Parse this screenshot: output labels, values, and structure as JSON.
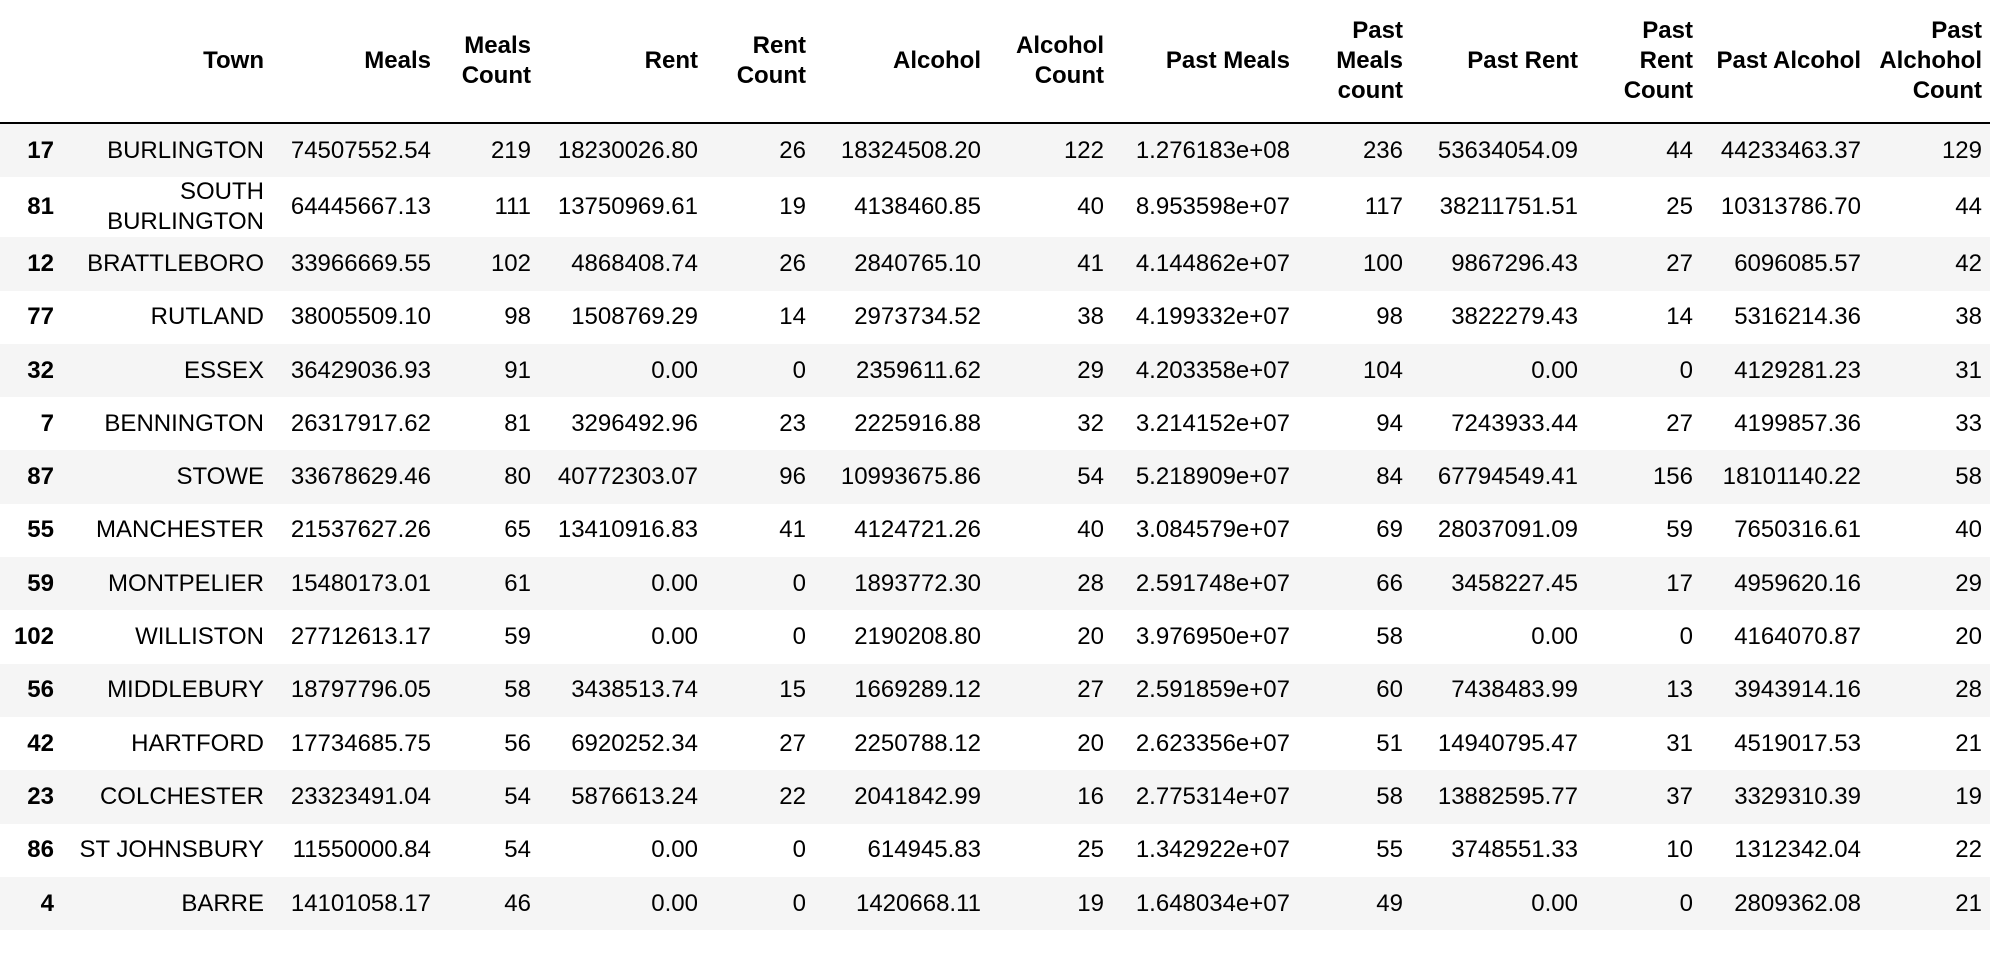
{
  "columns": [
    "Town",
    "Meals",
    "Meals Count",
    "Rent",
    "Rent Count",
    "Alcohol",
    "Alcohol Count",
    "Past Meals",
    "Past Meals count",
    "Past Rent",
    "Past Rent Count",
    "Past Alcohol",
    "Past Alchohol Count"
  ],
  "rows": [
    {
      "index": "17",
      "cells": [
        "BURLINGTON",
        "74507552.54",
        "219",
        "18230026.80",
        "26",
        "18324508.20",
        "122",
        "1.276183e+08",
        "236",
        "53634054.09",
        "44",
        "44233463.37",
        "129"
      ]
    },
    {
      "index": "81",
      "cells": [
        "SOUTH BURLINGTON",
        "64445667.13",
        "111",
        "13750969.61",
        "19",
        "4138460.85",
        "40",
        "8.953598e+07",
        "117",
        "38211751.51",
        "25",
        "10313786.70",
        "44"
      ]
    },
    {
      "index": "12",
      "cells": [
        "BRATTLEBORO",
        "33966669.55",
        "102",
        "4868408.74",
        "26",
        "2840765.10",
        "41",
        "4.144862e+07",
        "100",
        "9867296.43",
        "27",
        "6096085.57",
        "42"
      ]
    },
    {
      "index": "77",
      "cells": [
        "RUTLAND",
        "38005509.10",
        "98",
        "1508769.29",
        "14",
        "2973734.52",
        "38",
        "4.199332e+07",
        "98",
        "3822279.43",
        "14",
        "5316214.36",
        "38"
      ]
    },
    {
      "index": "32",
      "cells": [
        "ESSEX",
        "36429036.93",
        "91",
        "0.00",
        "0",
        "2359611.62",
        "29",
        "4.203358e+07",
        "104",
        "0.00",
        "0",
        "4129281.23",
        "31"
      ]
    },
    {
      "index": "7",
      "cells": [
        "BENNINGTON",
        "26317917.62",
        "81",
        "3296492.96",
        "23",
        "2225916.88",
        "32",
        "3.214152e+07",
        "94",
        "7243933.44",
        "27",
        "4199857.36",
        "33"
      ]
    },
    {
      "index": "87",
      "cells": [
        "STOWE",
        "33678629.46",
        "80",
        "40772303.07",
        "96",
        "10993675.86",
        "54",
        "5.218909e+07",
        "84",
        "67794549.41",
        "156",
        "18101140.22",
        "58"
      ]
    },
    {
      "index": "55",
      "cells": [
        "MANCHESTER",
        "21537627.26",
        "65",
        "13410916.83",
        "41",
        "4124721.26",
        "40",
        "3.084579e+07",
        "69",
        "28037091.09",
        "59",
        "7650316.61",
        "40"
      ]
    },
    {
      "index": "59",
      "cells": [
        "MONTPELIER",
        "15480173.01",
        "61",
        "0.00",
        "0",
        "1893772.30",
        "28",
        "2.591748e+07",
        "66",
        "3458227.45",
        "17",
        "4959620.16",
        "29"
      ]
    },
    {
      "index": "102",
      "cells": [
        "WILLISTON",
        "27712613.17",
        "59",
        "0.00",
        "0",
        "2190208.80",
        "20",
        "3.976950e+07",
        "58",
        "0.00",
        "0",
        "4164070.87",
        "20"
      ]
    },
    {
      "index": "56",
      "cells": [
        "MIDDLEBURY",
        "18797796.05",
        "58",
        "3438513.74",
        "15",
        "1669289.12",
        "27",
        "2.591859e+07",
        "60",
        "7438483.99",
        "13",
        "3943914.16",
        "28"
      ]
    },
    {
      "index": "42",
      "cells": [
        "HARTFORD",
        "17734685.75",
        "56",
        "6920252.34",
        "27",
        "2250788.12",
        "20",
        "2.623356e+07",
        "51",
        "14940795.47",
        "31",
        "4519017.53",
        "21"
      ]
    },
    {
      "index": "23",
      "cells": [
        "COLCHESTER",
        "23323491.04",
        "54",
        "5876613.24",
        "22",
        "2041842.99",
        "16",
        "2.775314e+07",
        "58",
        "13882595.77",
        "37",
        "3329310.39",
        "19"
      ]
    },
    {
      "index": "86",
      "cells": [
        "ST JOHNSBURY",
        "11550000.84",
        "54",
        "0.00",
        "0",
        "614945.83",
        "25",
        "1.342922e+07",
        "55",
        "3748551.33",
        "10",
        "1312342.04",
        "22"
      ]
    },
    {
      "index": "4",
      "cells": [
        "BARRE",
        "14101058.17",
        "46",
        "0.00",
        "0",
        "1420668.11",
        "19",
        "1.648034e+07",
        "49",
        "0.00",
        "0",
        "2809362.08",
        "21"
      ]
    }
  ]
}
